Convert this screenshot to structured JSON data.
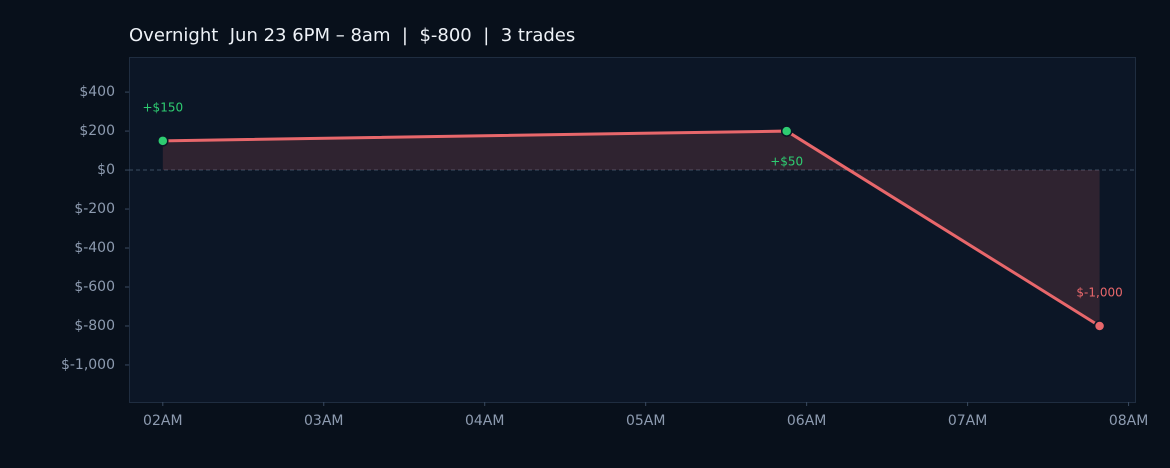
{
  "chart_data": {
    "type": "line",
    "title": "Overnight  Jun 23 6PM – 8am  |  $-800  |  3 trades",
    "x": [
      2.0,
      5.876,
      7.82
    ],
    "series": [
      {
        "color": "#e8676b",
        "values": [
          150,
          200,
          -800
        ]
      }
    ],
    "trades": {
      "values": [
        150,
        50,
        -1000
      ],
      "value_labels": [
        "+$150",
        "+$50",
        "$-1,000"
      ],
      "colors": {
        "positive": "#2ecc71",
        "negative": "#e8676b"
      }
    },
    "xlim": [
      1.79,
      8.04
    ],
    "xticks": [
      {
        "value": 2,
        "label": "02AM"
      },
      {
        "value": 3,
        "label": "03AM"
      },
      {
        "value": 4,
        "label": "04AM"
      },
      {
        "value": 5,
        "label": "05AM"
      },
      {
        "value": 6,
        "label": "06AM"
      },
      {
        "value": 7,
        "label": "07AM"
      },
      {
        "value": 8,
        "label": "08AM"
      }
    ],
    "ylim": [
      -1190,
      580
    ],
    "yticks": [
      {
        "value": 400,
        "label": "$400"
      },
      {
        "value": 200,
        "label": "$200"
      },
      {
        "value": 0,
        "label": "$0"
      },
      {
        "value": -200,
        "label": "$-200"
      },
      {
        "value": -400,
        "label": "$-400"
      },
      {
        "value": -600,
        "label": "$-600"
      },
      {
        "value": -800,
        "label": "$-800"
      },
      {
        "value": -1000,
        "label": "$-1,000"
      }
    ]
  }
}
